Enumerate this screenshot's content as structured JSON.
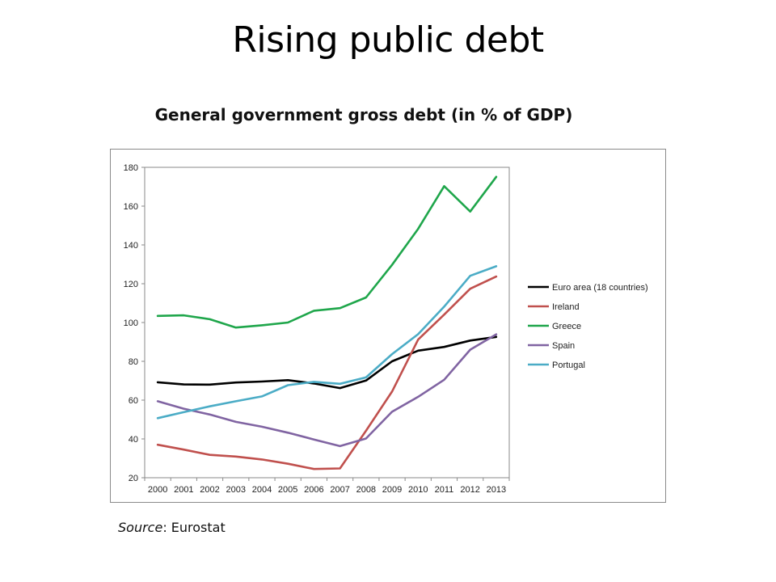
{
  "slide": {
    "title": "Rising public debt"
  },
  "source": {
    "label": "Source",
    "text": ": Eurostat"
  },
  "chart_data": {
    "type": "line",
    "title": "General government gross debt (in % of GDP)",
    "xlabel": "",
    "ylabel": "",
    "x": [
      "2000",
      "2001",
      "2002",
      "2003",
      "2004",
      "2005",
      "2006",
      "2007",
      "2008",
      "2009",
      "2010",
      "2011",
      "2012",
      "2013"
    ],
    "ylim": [
      20,
      180
    ],
    "yticks": [
      20,
      40,
      60,
      80,
      100,
      120,
      140,
      160,
      180
    ],
    "grid": false,
    "legend_position": "right",
    "series": [
      {
        "name": "Euro area (18 countries)",
        "color": "#000000",
        "values": [
          69.2,
          68.1,
          68.0,
          69.1,
          69.6,
          70.3,
          68.6,
          66.2,
          70.1,
          80.0,
          85.5,
          87.4,
          90.7,
          92.6
        ]
      },
      {
        "name": "Ireland",
        "color": "#c0504d",
        "values": [
          37.0,
          34.5,
          31.8,
          30.9,
          29.4,
          27.2,
          24.5,
          24.8,
          44.2,
          64.4,
          91.2,
          104.1,
          117.4,
          123.7
        ]
      },
      {
        "name": "Greece",
        "color": "#1fa64b",
        "values": [
          103.4,
          103.7,
          101.7,
          97.4,
          98.6,
          100.0,
          106.1,
          107.4,
          112.9,
          129.7,
          148.3,
          170.3,
          157.2,
          175.1
        ]
      },
      {
        "name": "Spain",
        "color": "#8064a2",
        "values": [
          59.4,
          55.6,
          52.6,
          48.8,
          46.3,
          43.2,
          39.7,
          36.3,
          40.2,
          54.0,
          61.7,
          70.5,
          86.0,
          93.9
        ]
      },
      {
        "name": "Portugal",
        "color": "#4bacc6",
        "values": [
          50.7,
          53.8,
          56.8,
          59.4,
          61.9,
          67.7,
          69.4,
          68.4,
          71.7,
          83.7,
          94.0,
          108.2,
          124.1,
          129.0
        ]
      }
    ]
  }
}
